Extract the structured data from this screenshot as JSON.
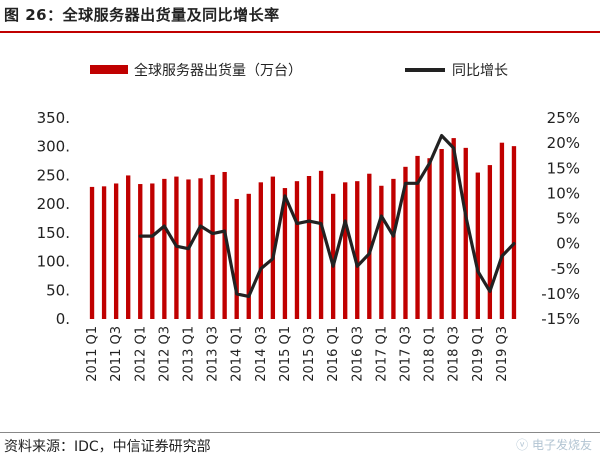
{
  "header": {
    "title": "图 26：全球服务器出货量及同比增长率"
  },
  "footer": {
    "source": "资料来源：IDC，中信证券研究部",
    "watermark": "ⓥ 电子发烧友"
  },
  "colors": {
    "bar": "#c00000",
    "line": "#222222",
    "rule": "#c00000"
  },
  "chart_data": {
    "type": "bar",
    "categories": [
      "2011 Q1",
      "2011 Q2",
      "2011 Q3",
      "2011 Q4",
      "2012 Q1",
      "2012 Q2",
      "2012 Q3",
      "2012 Q4",
      "2013 Q1",
      "2013 Q2",
      "2013 Q3",
      "2013 Q4",
      "2014 Q1",
      "2014 Q2",
      "2014 Q3",
      "2014 Q4",
      "2015 Q1",
      "2015 Q2",
      "2015 Q3",
      "2015 Q4",
      "2016 Q1",
      "2016 Q2",
      "2016 Q3",
      "2016 Q4",
      "2017 Q1",
      "2017 Q2",
      "2017 Q3",
      "2017 Q4",
      "2018 Q1",
      "2018 Q2",
      "2018 Q3",
      "2018 Q4",
      "2019 Q1",
      "2019 Q2",
      "2019 Q3",
      "2019 Q4"
    ],
    "x_tick_labels": [
      "2011 Q1",
      "2011 Q3",
      "2012 Q1",
      "2012 Q3",
      "2013 Q1",
      "2013 Q3",
      "2014 Q1",
      "2014 Q3",
      "2015 Q1",
      "2015 Q3",
      "2016 Q1",
      "2016 Q3",
      "2017 Q1",
      "2017 Q3",
      "2018 Q1",
      "2018 Q3",
      "2019 Q1",
      "2019 Q3"
    ],
    "series": [
      {
        "name": "全球服务器出货量（万台）",
        "type": "bar",
        "axis": "left",
        "values": [
          230,
          231,
          236,
          250,
          235,
          236,
          244,
          248,
          243,
          245,
          251,
          256,
          209,
          218,
          238,
          248,
          228,
          240,
          249,
          258,
          218,
          238,
          240,
          253,
          232,
          244,
          265,
          284,
          280,
          296,
          315,
          298,
          255,
          268,
          307,
          301
        ]
      },
      {
        "name": "同比增长",
        "type": "line",
        "axis": "right",
        "values": [
          null,
          null,
          null,
          null,
          1.5,
          1.5,
          3.5,
          -0.5,
          -1,
          3.5,
          2,
          2.5,
          -10,
          -10.5,
          -5,
          -3,
          9.5,
          4,
          4.5,
          4,
          -4.5,
          4.5,
          -4.5,
          -2,
          5.5,
          1.5,
          12,
          12,
          16,
          21.5,
          19,
          5.5,
          -5.5,
          -9.5,
          -2.5,
          0
        ]
      }
    ],
    "left_axis": {
      "min": 0,
      "max": 350,
      "ticks": [
        0,
        50,
        100,
        150,
        200,
        250,
        300,
        350
      ],
      "tick_labels": [
        "0.",
        "50.",
        "100.",
        "150.",
        "200.",
        "250.",
        "300.",
        "350."
      ]
    },
    "right_axis": {
      "min": -15,
      "max": 25,
      "ticks": [
        -15,
        -10,
        -5,
        0,
        5,
        10,
        15,
        20,
        25
      ],
      "tick_labels": [
        "-15%",
        "-10%",
        "-5%",
        "0%",
        "5%",
        "10%",
        "15%",
        "20%",
        "25%"
      ]
    },
    "grid": false,
    "legend_position": "top"
  }
}
